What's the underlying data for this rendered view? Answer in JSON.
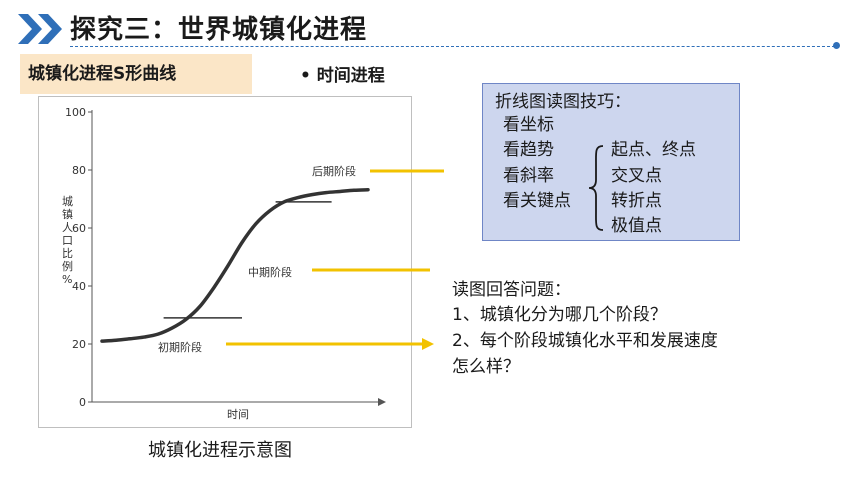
{
  "header": {
    "title": "探究三：世界城镇化进程"
  },
  "section": {
    "tag": "城镇化进程S形曲线",
    "bullet": "• 时间进程"
  },
  "chart_data": {
    "type": "line",
    "title": "",
    "xlabel": "时间",
    "ylabel": "城镇人口比例%",
    "yticks": [
      0,
      20,
      40,
      60,
      80,
      100
    ],
    "ylim": [
      0,
      100
    ],
    "xlim": [
      0,
      100
    ],
    "series": [
      {
        "x": [
          0,
          5,
          10,
          15,
          20,
          25,
          30,
          35,
          40,
          45,
          50,
          55,
          60,
          65,
          70,
          75,
          80,
          85,
          90,
          95
        ],
        "values": [
          21,
          21.3,
          21.8,
          22.4,
          23.4,
          25.5,
          28.5,
          33,
          39.5,
          47,
          55,
          61.5,
          66,
          69,
          70.5,
          71.5,
          72.2,
          72.6,
          73,
          73.2
        ]
      }
    ],
    "stage_labels": [
      "初期阶段",
      "中期阶段",
      "后期阶段"
    ],
    "caption": "城镇化进程示意图"
  },
  "tips": {
    "title": "折线图读图技巧：",
    "items": [
      "看坐标",
      "看趋势",
      "看斜率",
      "看关键点"
    ],
    "key_points": [
      "起点、终点",
      "交叉点",
      "转折点",
      "极值点"
    ]
  },
  "questions": {
    "intro": "读图回答问题：",
    "q1": "1、城镇化分为哪几个阶段？",
    "q2a": "2、每个阶段城镇化水平和发展速度",
    "q2b": "怎么样？"
  },
  "colors": {
    "accent": "#2f6fb8",
    "tag_bg": "#fbe6c7",
    "arrow": "#f2c200",
    "tips_bg": "#cdd6ee",
    "tips_border": "#6f86c6"
  }
}
